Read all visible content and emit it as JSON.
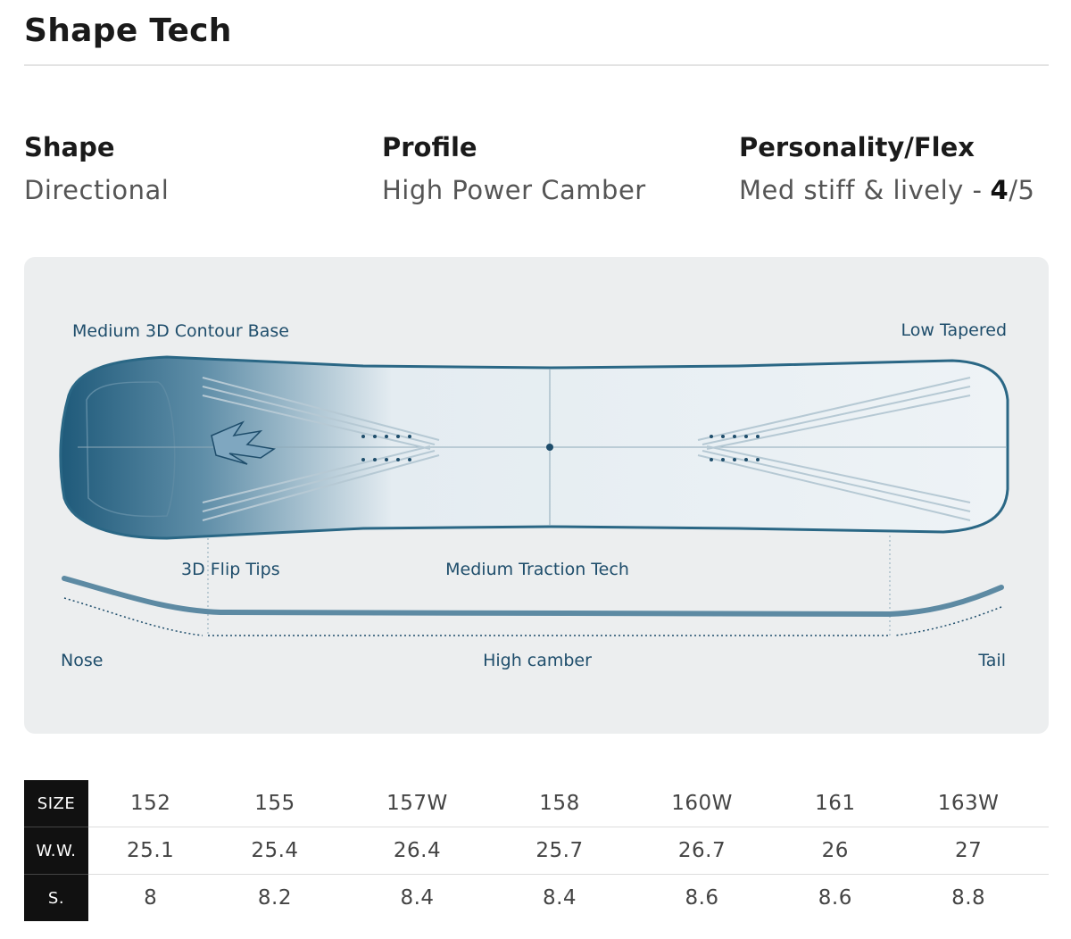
{
  "header": {
    "title": "Shape Tech"
  },
  "specs": [
    {
      "label": "Shape",
      "value": "Directional"
    },
    {
      "label": "Profile",
      "value": "High Power Camber"
    },
    {
      "label": "Personality/Flex",
      "value": "Med stiff & lively -",
      "flex": "4",
      "flex_scale": "/5"
    }
  ],
  "diagram": {
    "base": "Medium 3D Contour Base",
    "taper": "Low Tapered",
    "tips": "3D Flip Tips",
    "traction": "Medium Traction Tech",
    "nose": "Nose",
    "camber": "High camber",
    "tail": "Tail"
  },
  "table": {
    "rows": [
      {
        "label": "SIZE",
        "values": [
          "152",
          "155",
          "157W",
          "158",
          "160W",
          "161",
          "163W"
        ]
      },
      {
        "label": "W.W.",
        "values": [
          25.1,
          25.4,
          26.4,
          25.7,
          26.7,
          26,
          27
        ]
      },
      {
        "label": "S.",
        "values": [
          8,
          8.2,
          8.4,
          8.4,
          8.6,
          8.6,
          8.8
        ]
      }
    ]
  }
}
